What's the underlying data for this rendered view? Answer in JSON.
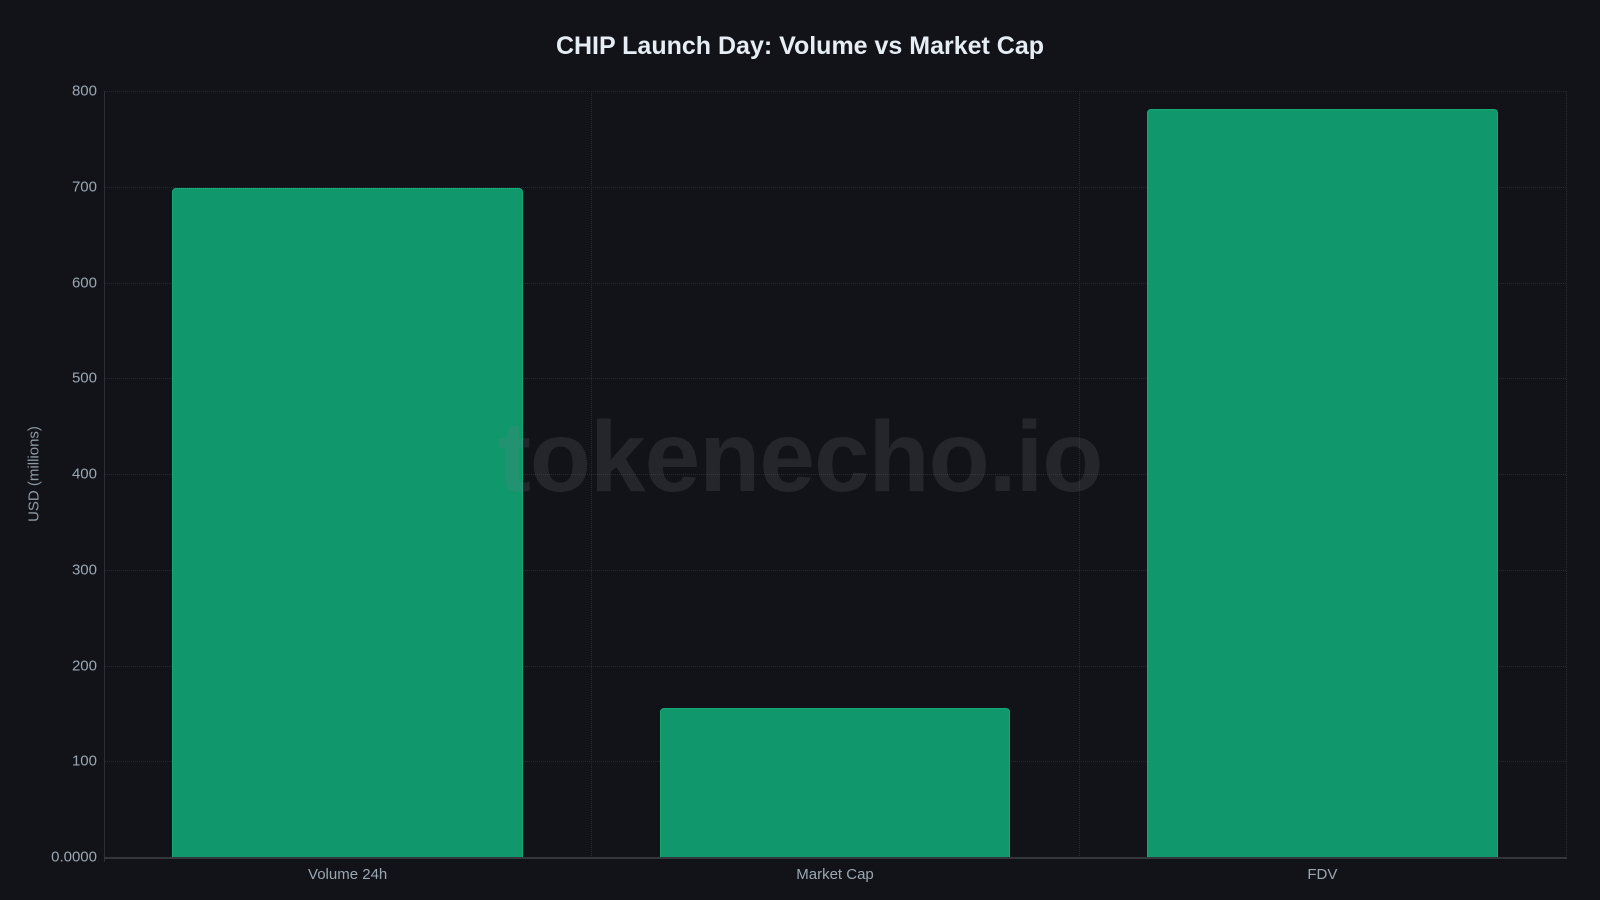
{
  "chart_data": {
    "type": "bar",
    "title": "CHIP Launch Day: Volume vs Market Cap",
    "xlabel": "",
    "ylabel": "USD (millions)",
    "categories": [
      "Volume 24h",
      "Market Cap",
      "FDV"
    ],
    "values": [
      700,
      157,
      782
    ],
    "ylim": [
      0,
      800
    ],
    "yticks": [
      "0.0000",
      "100",
      "200",
      "300",
      "400",
      "500",
      "600",
      "700",
      "800"
    ],
    "grid": true,
    "legend": null,
    "bar_color": "#10976b",
    "watermark": "tokenecho.io"
  },
  "colors": {
    "background": "#121318",
    "bar": "#10976b",
    "title": "#e6edf5",
    "tick_text": "#9aa7b2"
  }
}
